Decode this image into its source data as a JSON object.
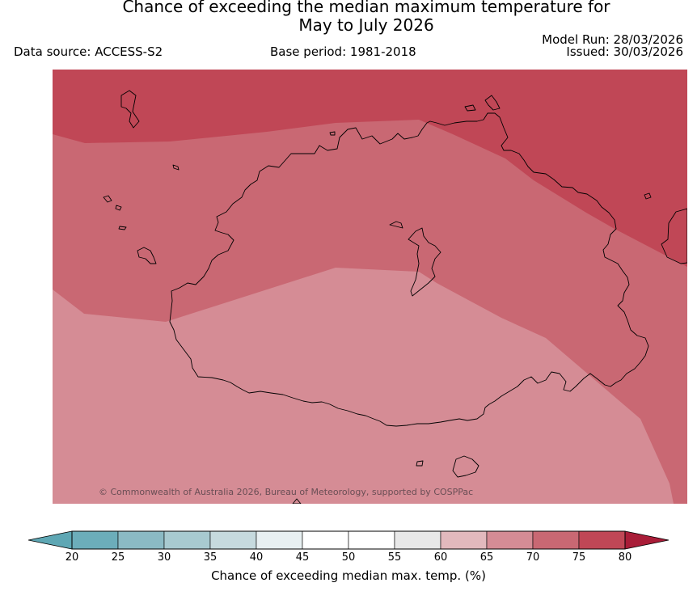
{
  "title_line1": "Chance of exceeding the median maximum temperature for",
  "title_line2": "May to July 2026",
  "data_source": "Data source: ACCESS-S2",
  "base_period": "Base period: 1981-2018",
  "model_run": "Model Run: 28/03/2026",
  "issued": "Issued: 30/03/2026",
  "copyright": "© Commonwealth of Australia 2026, Bureau of Meteorology, supported by COSPPac",
  "colorbar": {
    "title": "Chance of exceeding median max. temp. (%)",
    "ticks": [
      "20",
      "25",
      "30",
      "35",
      "40",
      "45",
      "50",
      "55",
      "60",
      "65",
      "70",
      "75",
      "80"
    ],
    "colors": {
      "below20": "#5ea7b4",
      "20-25": "#6cadba",
      "25-30": "#8bbac4",
      "30-35": "#a8cad0",
      "35-40": "#c6dade",
      "40-45": "#e8f0f2",
      "45-50": "#ffffff",
      "50-55": "#ffffff",
      "55-60": "#e8e8e8",
      "60-65": "#e2b9bd",
      "65-70": "#d58c95",
      "70-75": "#c96873",
      "75-80": "#c04756",
      "above80": "#a91d38"
    }
  },
  "map": {
    "zones": [
      {
        "category": "75-80",
        "color": "#c04756"
      },
      {
        "category": "70-75",
        "color": "#c96873"
      },
      {
        "category": "65-70",
        "color": "#d58c95"
      }
    ],
    "coastline_color": "#000000"
  }
}
